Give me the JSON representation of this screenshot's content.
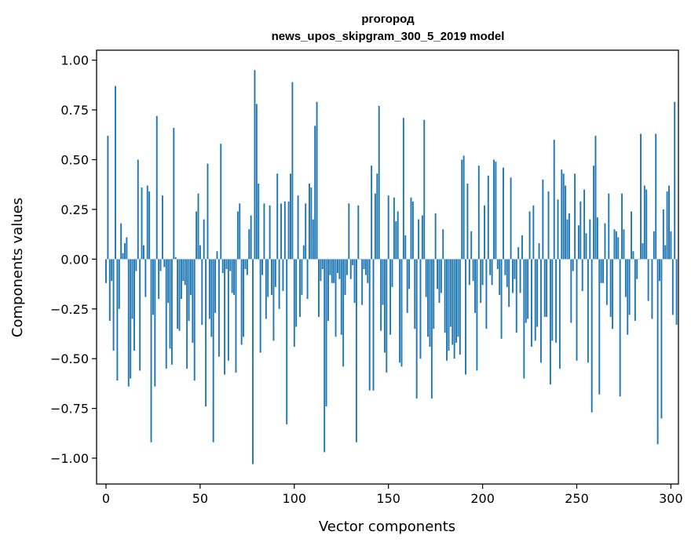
{
  "chart_data": {
    "type": "bar",
    "title_line1": "pгогород",
    "title_line2": "news_upos_skipgram_300_5_2019 model",
    "xlabel": "Vector components",
    "ylabel": "Components values",
    "xlim": [
      -5,
      304
    ],
    "ylim": [
      -1.13,
      1.05
    ],
    "xticks": [
      0,
      50,
      100,
      150,
      200,
      250,
      300
    ],
    "yticks": [
      1.0,
      0.75,
      0.5,
      0.25,
      0.0,
      -0.25,
      -0.5,
      -0.75,
      -1.0
    ],
    "xtick_labels": [
      "0",
      "50",
      "100",
      "150",
      "200",
      "250",
      "300"
    ],
    "ytick_labels": [
      "1.00",
      "0.75",
      "0.50",
      "0.25",
      "0.00",
      "−0.25",
      "−0.50",
      "−0.75",
      "−1.00"
    ],
    "bar_color": "#1f77b4",
    "values": [
      -0.12,
      0.62,
      -0.31,
      -0.11,
      -0.46,
      0.87,
      -0.61,
      -0.25,
      0.18,
      0.03,
      0.08,
      0.11,
      -0.64,
      -0.6,
      -0.3,
      -0.46,
      -0.06,
      0.5,
      -0.56,
      0.36,
      0.07,
      -0.19,
      0.37,
      0.34,
      -0.92,
      -0.28,
      -0.64,
      0.72,
      -0.2,
      -0.06,
      0.32,
      -0.04,
      -0.55,
      -0.22,
      -0.45,
      -0.53,
      0.66,
      0.01,
      -0.35,
      -0.36,
      -0.2,
      -0.11,
      -0.13,
      -0.55,
      -0.31,
      -0.18,
      -0.42,
      -0.61,
      0.24,
      0.33,
      0.07,
      -0.33,
      0.2,
      -0.74,
      0.48,
      -0.3,
      -0.39,
      -0.92,
      -0.27,
      0.04,
      -0.49,
      0.58,
      -0.07,
      -0.58,
      -0.05,
      -0.51,
      -0.06,
      -0.17,
      -0.18,
      -0.57,
      0.24,
      0.28,
      -0.43,
      -0.39,
      -0.05,
      -0.08,
      0.15,
      0.22,
      -1.03,
      0.95,
      0.78,
      0.38,
      -0.47,
      -0.08,
      0.28,
      -0.3,
      -0.19,
      0.27,
      -0.18,
      -0.41,
      -0.14,
      0.43,
      -0.25,
      0.28,
      -0.16,
      0.29,
      -0.83,
      0.29,
      0.43,
      0.89,
      -0.44,
      -0.34,
      0.32,
      -0.29,
      -0.18,
      0.07,
      0.28,
      -0.2,
      0.38,
      0.36,
      0.2,
      0.67,
      0.79,
      -0.29,
      -0.11,
      -0.05,
      -0.97,
      -0.74,
      -0.31,
      -0.08,
      -0.12,
      -0.12,
      -0.39,
      -0.07,
      -0.1,
      -0.38,
      -0.54,
      -0.18,
      -0.08,
      0.28,
      -0.1,
      -0.03,
      -0.22,
      -0.92,
      0.27,
      0.0,
      -0.23,
      -0.05,
      -0.08,
      -0.12,
      -0.66,
      0.47,
      -0.66,
      0.33,
      0.43,
      0.77,
      -0.36,
      -0.23,
      -0.47,
      -0.57,
      0.32,
      -0.38,
      -0.14,
      0.31,
      0.19,
      0.24,
      -0.52,
      -0.54,
      0.71,
      0.12,
      -0.27,
      -0.15,
      0.31,
      0.29,
      -0.35,
      -0.7,
      0.2,
      -0.5,
      0.22,
      0.7,
      -0.19,
      -0.39,
      -0.44,
      -0.7,
      -0.35,
      0.23,
      -0.15,
      -0.22,
      -0.17,
      0.15,
      -0.37,
      -0.51,
      -0.46,
      -0.34,
      -0.43,
      -0.5,
      -0.42,
      -0.39,
      -0.48,
      0.5,
      0.52,
      -0.58,
      0.38,
      -0.13,
      0.14,
      -0.11,
      -0.27,
      -0.56,
      0.47,
      -0.22,
      -0.13,
      0.27,
      -0.35,
      0.42,
      -0.08,
      -0.13,
      0.5,
      0.49,
      -0.05,
      -0.18,
      -0.4,
      0.46,
      -0.08,
      -0.14,
      -0.24,
      0.41,
      -0.17,
      -0.1,
      -0.37,
      0.06,
      -0.17,
      0.12,
      -0.6,
      -0.32,
      -0.3,
      0.24,
      -0.44,
      0.27,
      -0.41,
      -0.34,
      0.08,
      -0.52,
      0.4,
      -0.29,
      -0.29,
      0.34,
      -0.63,
      -0.41,
      0.6,
      -0.42,
      0.3,
      -0.55,
      0.45,
      0.43,
      0.37,
      0.2,
      0.23,
      -0.32,
      -0.06,
      0.43,
      -0.51,
      0.17,
      0.29,
      -0.16,
      0.35,
      0.13,
      -0.52,
      0.2,
      -0.77,
      0.47,
      0.62,
      0.21,
      -0.68,
      -0.12,
      -0.12,
      0.18,
      -0.23,
      0.33,
      -0.29,
      -0.35,
      0.15,
      0.14,
      0.11,
      -0.69,
      0.33,
      0.15,
      -0.19,
      -0.38,
      -0.28,
      0.24,
      0.04,
      -0.31,
      -0.1,
      0.0,
      0.63,
      0.08,
      0.37,
      0.35,
      -0.21,
      0.0,
      -0.3,
      0.14,
      0.63,
      -0.93,
      -0.11,
      -0.8,
      0.25,
      0.07,
      0.34,
      0.37,
      0.14,
      -0.28,
      0.79,
      -0.33
    ]
  }
}
